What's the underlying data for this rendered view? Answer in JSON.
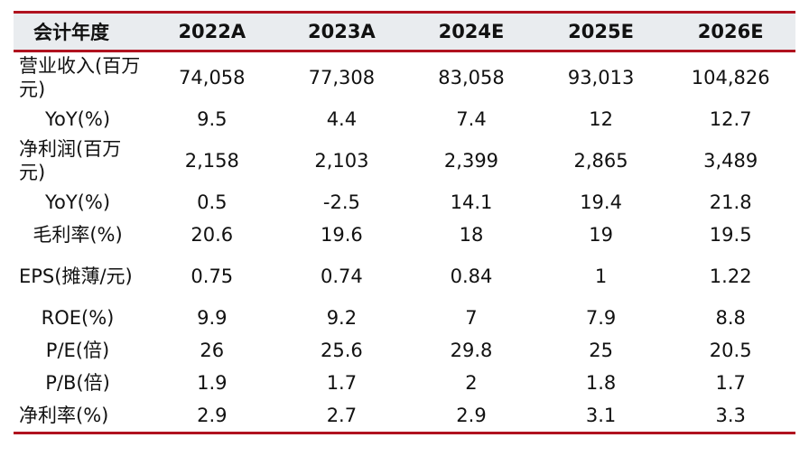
{
  "table": {
    "header": {
      "label": "会计年度",
      "years": [
        "2022A",
        "2023A",
        "2024E",
        "2025E",
        "2026E"
      ]
    },
    "rows": [
      {
        "label": "营业收入(百万元)",
        "values": [
          "74,058",
          "77,308",
          "83,058",
          "93,013",
          "104,826"
        ]
      },
      {
        "label": "YoY(%)",
        "values": [
          "9.5",
          "4.4",
          "7.4",
          "12",
          "12.7"
        ]
      },
      {
        "label": "净利润(百万元)",
        "values": [
          "2,158",
          "2,103",
          "2,399",
          "2,865",
          "3,489"
        ]
      },
      {
        "label": "YoY(%)",
        "values": [
          "0.5",
          "-2.5",
          "14.1",
          "19.4",
          "21.8"
        ]
      },
      {
        "label": "毛利率(%)",
        "values": [
          "20.6",
          "19.6",
          "18",
          "19",
          "19.5"
        ]
      },
      {
        "label": "EPS(摊薄/元)",
        "values": [
          "0.75",
          "0.74",
          "0.84",
          "1",
          "1.22"
        ]
      },
      {
        "label": "ROE(%)",
        "values": [
          "9.9",
          "9.2",
          "7",
          "7.9",
          "8.8"
        ]
      },
      {
        "label": "P/E(倍)",
        "values": [
          "26",
          "25.6",
          "29.8",
          "25",
          "20.5"
        ]
      },
      {
        "label": "P/B(倍)",
        "values": [
          "1.9",
          "1.7",
          "2",
          "1.8",
          "1.7"
        ]
      },
      {
        "label": "净利率(%)",
        "values": [
          "2.9",
          "2.7",
          "2.9",
          "3.1",
          "3.3"
        ]
      }
    ]
  },
  "colors": {
    "rule": "#b0121f",
    "header_bg": "#e9ecef",
    "text": "#111111"
  }
}
